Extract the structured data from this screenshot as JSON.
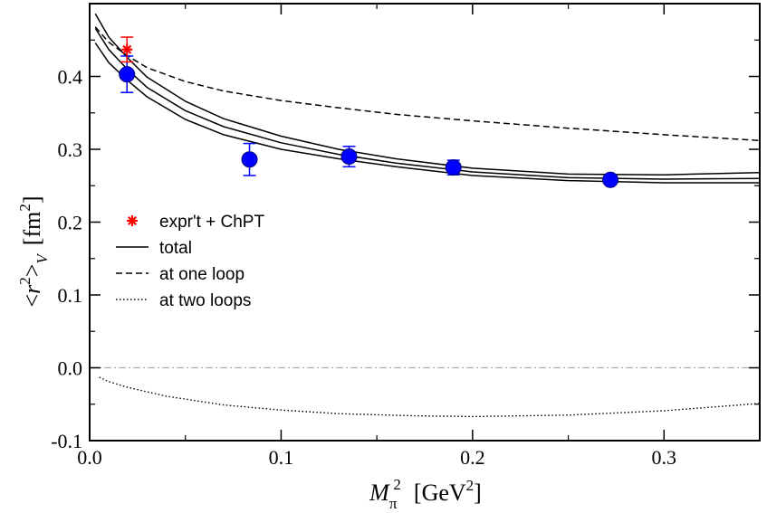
{
  "chart_data": {
    "type": "scatter",
    "title": "",
    "xlabel": {
      "symbol": "M",
      "sub": "π",
      "sup": "2",
      "unit_open": "[GeV",
      "unit_sup": "2",
      "unit_close": "]"
    },
    "ylabel": {
      "open": "<",
      "symbol": "r",
      "sup": "2",
      "close": ">",
      "sub": "V",
      "unit_open": "[fm",
      "unit_sup": "2",
      "unit_close": "]"
    },
    "xlim": [
      0.0,
      0.35
    ],
    "ylim": [
      -0.1,
      0.5
    ],
    "xticks": [
      0.0,
      0.1,
      0.2,
      0.3
    ],
    "xtick_labels": [
      "0.0",
      "0.1",
      "0.2",
      "0.3"
    ],
    "yticks": [
      -0.1,
      0.0,
      0.1,
      0.2,
      0.3,
      0.4
    ],
    "ytick_labels": [
      "-0.1",
      "0.0",
      "0.1",
      "0.2",
      "0.3",
      "0.4"
    ],
    "lattice_points": [
      {
        "x": 0.0195,
        "y": 0.403,
        "err": 0.025
      },
      {
        "x": 0.0835,
        "y": 0.286,
        "err": 0.022
      },
      {
        "x": 0.1355,
        "y": 0.29,
        "err": 0.014
      },
      {
        "x": 0.19,
        "y": 0.275,
        "err": 0.01
      },
      {
        "x": 0.272,
        "y": 0.258,
        "err": 0.006
      }
    ],
    "experiment_point": {
      "x": 0.0195,
      "y": 0.437,
      "err": 0.017,
      "label": "expr't + ChPT"
    },
    "series": [
      {
        "name": "total",
        "style": "solid",
        "points": [
          [
            0.003,
            0.486
          ],
          [
            0.01,
            0.454
          ],
          [
            0.02,
            0.425
          ],
          [
            0.03,
            0.399
          ],
          [
            0.05,
            0.366
          ],
          [
            0.07,
            0.342
          ],
          [
            0.1,
            0.318
          ],
          [
            0.13,
            0.3
          ],
          [
            0.16,
            0.287
          ],
          [
            0.2,
            0.274
          ],
          [
            0.25,
            0.266
          ],
          [
            0.3,
            0.265
          ],
          [
            0.35,
            0.268
          ]
        ]
      },
      {
        "name": "total-center",
        "style": "solid",
        "points": [
          [
            0.003,
            0.466
          ],
          [
            0.01,
            0.437
          ],
          [
            0.02,
            0.409
          ],
          [
            0.03,
            0.385
          ],
          [
            0.05,
            0.353
          ],
          [
            0.07,
            0.331
          ],
          [
            0.1,
            0.309
          ],
          [
            0.13,
            0.293
          ],
          [
            0.16,
            0.281
          ],
          [
            0.2,
            0.269
          ],
          [
            0.25,
            0.261
          ],
          [
            0.3,
            0.259
          ],
          [
            0.35,
            0.26
          ]
        ]
      },
      {
        "name": "total-lower",
        "style": "solid",
        "points": [
          [
            0.003,
            0.446
          ],
          [
            0.01,
            0.419
          ],
          [
            0.02,
            0.394
          ],
          [
            0.03,
            0.372
          ],
          [
            0.05,
            0.341
          ],
          [
            0.07,
            0.32
          ],
          [
            0.1,
            0.3
          ],
          [
            0.13,
            0.287
          ],
          [
            0.16,
            0.276
          ],
          [
            0.2,
            0.264
          ],
          [
            0.25,
            0.257
          ],
          [
            0.3,
            0.254
          ],
          [
            0.35,
            0.254
          ]
        ]
      },
      {
        "name": "at one loop",
        "style": "dashed",
        "points": [
          [
            0.003,
            0.468
          ],
          [
            0.01,
            0.447
          ],
          [
            0.02,
            0.428
          ],
          [
            0.03,
            0.412
          ],
          [
            0.05,
            0.393
          ],
          [
            0.07,
            0.38
          ],
          [
            0.1,
            0.367
          ],
          [
            0.13,
            0.357
          ],
          [
            0.16,
            0.348
          ],
          [
            0.2,
            0.339
          ],
          [
            0.25,
            0.329
          ],
          [
            0.3,
            0.32
          ],
          [
            0.35,
            0.312
          ]
        ]
      },
      {
        "name": "at two loops",
        "style": "dotted",
        "points": [
          [
            0.005,
            -0.013
          ],
          [
            0.01,
            -0.019
          ],
          [
            0.02,
            -0.027
          ],
          [
            0.04,
            -0.039
          ],
          [
            0.07,
            -0.051
          ],
          [
            0.1,
            -0.058
          ],
          [
            0.13,
            -0.063
          ],
          [
            0.17,
            -0.066
          ],
          [
            0.2,
            -0.067
          ],
          [
            0.25,
            -0.065
          ],
          [
            0.3,
            -0.059
          ],
          [
            0.35,
            -0.049
          ]
        ]
      }
    ],
    "zero_line": {
      "y": 0.0,
      "style": "dash-dot",
      "color": "#b6a6a6"
    },
    "legend": {
      "placement": "left-middle",
      "entries": [
        {
          "label": "expr't + ChPT",
          "marker": "asterisk",
          "color": "#ff0000"
        },
        {
          "label": "total",
          "line": "solid",
          "color": "#000000"
        },
        {
          "label": "at one loop",
          "line": "dashed",
          "color": "#000000"
        },
        {
          "label": "at two loops",
          "line": "dotted",
          "color": "#000000"
        }
      ]
    },
    "colors": {
      "lattice": "#0000ff",
      "experiment": "#ff0000",
      "curves": "#000000"
    }
  }
}
